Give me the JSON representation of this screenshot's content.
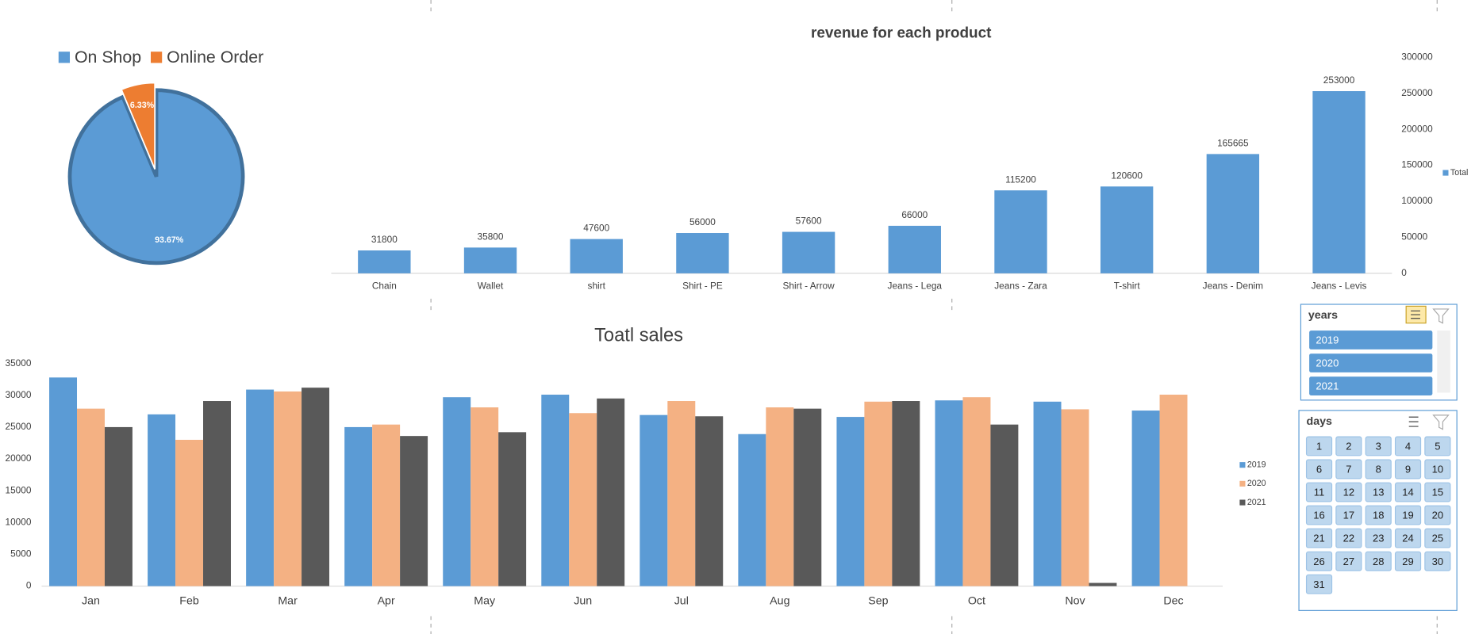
{
  "chart_data": [
    {
      "type": "pie",
      "categories": [
        "On Shop",
        "Online Order"
      ],
      "values": [
        93.67,
        6.33
      ],
      "value_labels": [
        "93.67%",
        "6.33%"
      ],
      "colors": [
        "#5b9bd5",
        "#ed7d31"
      ],
      "legend": "top"
    },
    {
      "type": "bar",
      "title": "revenue for each product",
      "categories": [
        "Chain",
        "Wallet",
        "shirt",
        "Shirt - PE",
        "Shirt - Arrow",
        "Jeans - Lega",
        "Jeans - Zara",
        "T-shirt",
        "Jeans - Denim",
        "Jeans - Levis"
      ],
      "series": [
        {
          "name": "Total",
          "color": "#5b9bd5",
          "values": [
            31800,
            35800,
            47600,
            56000,
            57600,
            66000,
            115200,
            120600,
            165665,
            253000
          ]
        }
      ],
      "ylim": [
        0,
        300000
      ],
      "yticks": [
        0,
        50000,
        100000,
        150000,
        200000,
        250000,
        300000
      ],
      "legend": "right"
    },
    {
      "type": "grouped-bar",
      "title": "Toatl sales",
      "categories": [
        "Jan",
        "Feb",
        "Mar",
        "Apr",
        "May",
        "Jun",
        "Jul",
        "Aug",
        "Sep",
        "Oct",
        "Nov",
        "Dec"
      ],
      "series": [
        {
          "name": "2019",
          "color": "#5b9bd5",
          "values": [
            32800,
            27000,
            30900,
            25000,
            29700,
            30100,
            26900,
            23900,
            26600,
            29200,
            29000,
            27600
          ]
        },
        {
          "name": "2020",
          "color": "#f4b183",
          "values": [
            27900,
            23000,
            30600,
            25400,
            28100,
            27200,
            29100,
            28100,
            29000,
            29700,
            27800,
            30100
          ]
        },
        {
          "name": "2021",
          "color": "#595959",
          "values": [
            25000,
            29100,
            31200,
            23600,
            24200,
            29500,
            26700,
            27900,
            29100,
            25400,
            500,
            null
          ]
        }
      ],
      "ylim": [
        0,
        35000
      ],
      "yticks": [
        0,
        5000,
        10000,
        15000,
        20000,
        25000,
        30000,
        35000
      ],
      "legend": "right"
    }
  ],
  "slicers": [
    {
      "title": "years",
      "items": [
        "2019",
        "2020",
        "2021"
      ]
    },
    {
      "title": "days",
      "items": [
        "1",
        "2",
        "3",
        "4",
        "5",
        "6",
        "7",
        "8",
        "9",
        "10",
        "11",
        "12",
        "13",
        "14",
        "15",
        "16",
        "17",
        "18",
        "19",
        "20",
        "21",
        "22",
        "23",
        "24",
        "25",
        "26",
        "27",
        "28",
        "29",
        "30",
        "31"
      ]
    }
  ]
}
